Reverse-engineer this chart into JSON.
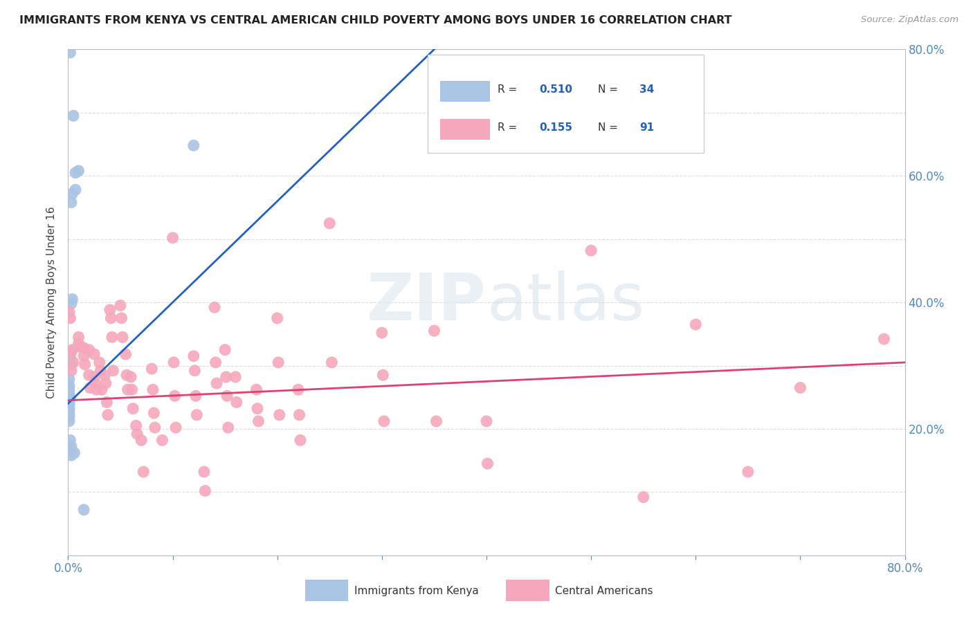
{
  "title": "IMMIGRANTS FROM KENYA VS CENTRAL AMERICAN CHILD POVERTY AMONG BOYS UNDER 16 CORRELATION CHART",
  "source": "Source: ZipAtlas.com",
  "ylabel": "Child Poverty Among Boys Under 16",
  "legend_blue_r": "0.510",
  "legend_blue_n": "34",
  "legend_pink_r": "0.155",
  "legend_pink_n": "91",
  "legend_label_blue": "Immigrants from Kenya",
  "legend_label_pink": "Central Americans",
  "watermark": "ZIPatlas",
  "blue_color": "#aac4e4",
  "pink_color": "#f5a8bc",
  "blue_line_color": "#2060c0",
  "pink_line_color": "#e04070",
  "xlim": [
    0.0,
    0.8
  ],
  "ylim": [
    0.0,
    0.8
  ],
  "blue_points": [
    [
      0.002,
      0.795
    ],
    [
      0.005,
      0.695
    ],
    [
      0.007,
      0.605
    ],
    [
      0.007,
      0.578
    ],
    [
      0.004,
      0.572
    ],
    [
      0.003,
      0.558
    ],
    [
      0.01,
      0.608
    ],
    [
      0.004,
      0.405
    ],
    [
      0.003,
      0.398
    ],
    [
      0.002,
      0.32
    ],
    [
      0.002,
      0.315
    ],
    [
      0.002,
      0.305
    ],
    [
      0.003,
      0.302
    ],
    [
      0.001,
      0.278
    ],
    [
      0.001,
      0.268
    ],
    [
      0.001,
      0.262
    ],
    [
      0.001,
      0.255
    ],
    [
      0.001,
      0.252
    ],
    [
      0.001,
      0.25
    ],
    [
      0.002,
      0.248
    ],
    [
      0.001,
      0.242
    ],
    [
      0.001,
      0.238
    ],
    [
      0.001,
      0.232
    ],
    [
      0.001,
      0.228
    ],
    [
      0.001,
      0.222
    ],
    [
      0.001,
      0.218
    ],
    [
      0.001,
      0.212
    ],
    [
      0.002,
      0.182
    ],
    [
      0.003,
      0.172
    ],
    [
      0.002,
      0.168
    ],
    [
      0.006,
      0.162
    ],
    [
      0.003,
      0.158
    ],
    [
      0.015,
      0.072
    ],
    [
      0.12,
      0.648
    ]
  ],
  "pink_points": [
    [
      0.001,
      0.385
    ],
    [
      0.002,
      0.375
    ],
    [
      0.004,
      0.325
    ],
    [
      0.005,
      0.305
    ],
    [
      0.003,
      0.322
    ],
    [
      0.003,
      0.292
    ],
    [
      0.01,
      0.345
    ],
    [
      0.01,
      0.335
    ],
    [
      0.011,
      0.33
    ],
    [
      0.015,
      0.328
    ],
    [
      0.015,
      0.315
    ],
    [
      0.016,
      0.302
    ],
    [
      0.02,
      0.325
    ],
    [
      0.02,
      0.285
    ],
    [
      0.021,
      0.265
    ],
    [
      0.025,
      0.318
    ],
    [
      0.025,
      0.282
    ],
    [
      0.026,
      0.272
    ],
    [
      0.027,
      0.262
    ],
    [
      0.03,
      0.305
    ],
    [
      0.031,
      0.292
    ],
    [
      0.032,
      0.262
    ],
    [
      0.035,
      0.285
    ],
    [
      0.036,
      0.272
    ],
    [
      0.037,
      0.242
    ],
    [
      0.038,
      0.222
    ],
    [
      0.04,
      0.388
    ],
    [
      0.041,
      0.375
    ],
    [
      0.042,
      0.345
    ],
    [
      0.043,
      0.292
    ],
    [
      0.05,
      0.395
    ],
    [
      0.051,
      0.375
    ],
    [
      0.052,
      0.345
    ],
    [
      0.055,
      0.318
    ],
    [
      0.056,
      0.285
    ],
    [
      0.057,
      0.262
    ],
    [
      0.06,
      0.282
    ],
    [
      0.061,
      0.262
    ],
    [
      0.062,
      0.232
    ],
    [
      0.065,
      0.205
    ],
    [
      0.066,
      0.192
    ],
    [
      0.07,
      0.182
    ],
    [
      0.072,
      0.132
    ],
    [
      0.08,
      0.295
    ],
    [
      0.081,
      0.262
    ],
    [
      0.082,
      0.225
    ],
    [
      0.083,
      0.202
    ],
    [
      0.09,
      0.182
    ],
    [
      0.1,
      0.502
    ],
    [
      0.101,
      0.305
    ],
    [
      0.102,
      0.252
    ],
    [
      0.103,
      0.202
    ],
    [
      0.12,
      0.315
    ],
    [
      0.121,
      0.292
    ],
    [
      0.122,
      0.252
    ],
    [
      0.123,
      0.222
    ],
    [
      0.13,
      0.132
    ],
    [
      0.131,
      0.102
    ],
    [
      0.14,
      0.392
    ],
    [
      0.141,
      0.305
    ],
    [
      0.142,
      0.272
    ],
    [
      0.15,
      0.325
    ],
    [
      0.151,
      0.282
    ],
    [
      0.152,
      0.252
    ],
    [
      0.153,
      0.202
    ],
    [
      0.16,
      0.282
    ],
    [
      0.161,
      0.242
    ],
    [
      0.18,
      0.262
    ],
    [
      0.181,
      0.232
    ],
    [
      0.182,
      0.212
    ],
    [
      0.2,
      0.375
    ],
    [
      0.201,
      0.305
    ],
    [
      0.202,
      0.222
    ],
    [
      0.22,
      0.262
    ],
    [
      0.221,
      0.222
    ],
    [
      0.222,
      0.182
    ],
    [
      0.25,
      0.525
    ],
    [
      0.252,
      0.305
    ],
    [
      0.3,
      0.352
    ],
    [
      0.301,
      0.285
    ],
    [
      0.302,
      0.212
    ],
    [
      0.35,
      0.355
    ],
    [
      0.352,
      0.212
    ],
    [
      0.4,
      0.212
    ],
    [
      0.401,
      0.145
    ],
    [
      0.5,
      0.482
    ],
    [
      0.55,
      0.092
    ],
    [
      0.6,
      0.365
    ],
    [
      0.65,
      0.132
    ],
    [
      0.7,
      0.265
    ],
    [
      0.78,
      0.342
    ]
  ],
  "background_color": "#ffffff",
  "grid_color": "#dddddd"
}
